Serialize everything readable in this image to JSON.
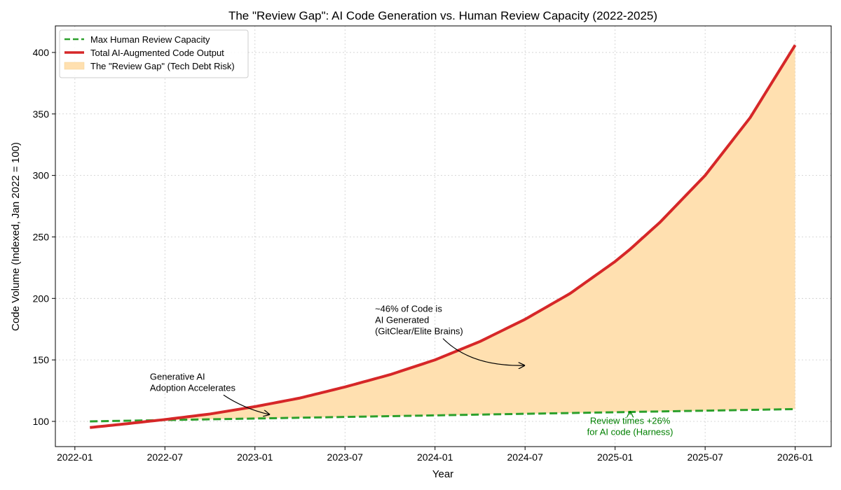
{
  "chart_data": {
    "type": "line",
    "title": "The \"Review Gap\": AI Code Generation vs. Human Review Capacity (2022-2025)",
    "xlabel": "Year",
    "ylabel": "Code Volume (Indexed, Jan 2022 = 100)",
    "xlim": [
      "2021-11-22",
      "2026-03-13"
    ],
    "ylim": [
      79.5,
      421.6
    ],
    "xticks": [
      "2022-01",
      "2022-07",
      "2023-01",
      "2023-07",
      "2024-01",
      "2024-07",
      "2025-01",
      "2025-07",
      "2026-01"
    ],
    "yticks": [
      100,
      150,
      200,
      250,
      300,
      350,
      400
    ],
    "grid": true,
    "legend_position": "top-left",
    "series": [
      {
        "name": "Max Human Review Capacity",
        "color": "#2ca02c",
        "style": "dashed",
        "x": [
          "2022-02",
          "2026-01"
        ],
        "y": [
          100,
          110
        ]
      },
      {
        "name": "Total AI-Augmented Code Output",
        "color": "#d62728",
        "style": "solid",
        "x": [
          "2022-02",
          "2022-04",
          "2022-07",
          "2022-10",
          "2023-01",
          "2023-04",
          "2023-07",
          "2023-10",
          "2024-01",
          "2024-04",
          "2024-07",
          "2024-10",
          "2025-01",
          "2025-02",
          "2025-04",
          "2025-07",
          "2025-10",
          "2026-01"
        ],
        "y": [
          95,
          97.5,
          101.5,
          106,
          112,
          119,
          128,
          138,
          150,
          165,
          183,
          204,
          230,
          240,
          262,
          300,
          347,
          406
        ]
      }
    ],
    "fill": {
      "name": "The \"Review Gap\" (Tech Debt Risk)",
      "color": "#ffe0b0",
      "between": [
        "Total AI-Augmented Code Output",
        "Max Human Review Capacity"
      ]
    },
    "annotations": [
      {
        "lines": [
          "Generative AI",
          "Adoption Accelerates"
        ],
        "color": "#000000",
        "text_at": [
          "2022-06",
          134
        ],
        "arrow_to": [
          "2023-02",
          105.5
        ]
      },
      {
        "lines": [
          "~46% of Code is",
          "AI Generated",
          "(GitClear/Elite Brains)"
        ],
        "color": "#000000",
        "text_at": [
          "2023-09",
          189
        ],
        "arrow_to": [
          "2024-07",
          145.5
        ]
      },
      {
        "lines": [
          "Review times +26%",
          "for AI code (Harness)"
        ],
        "color": "#008000",
        "text_at": [
          "2025-02",
          98
        ],
        "arrow_to": [
          "2025-02",
          108.5
        ]
      }
    ]
  }
}
